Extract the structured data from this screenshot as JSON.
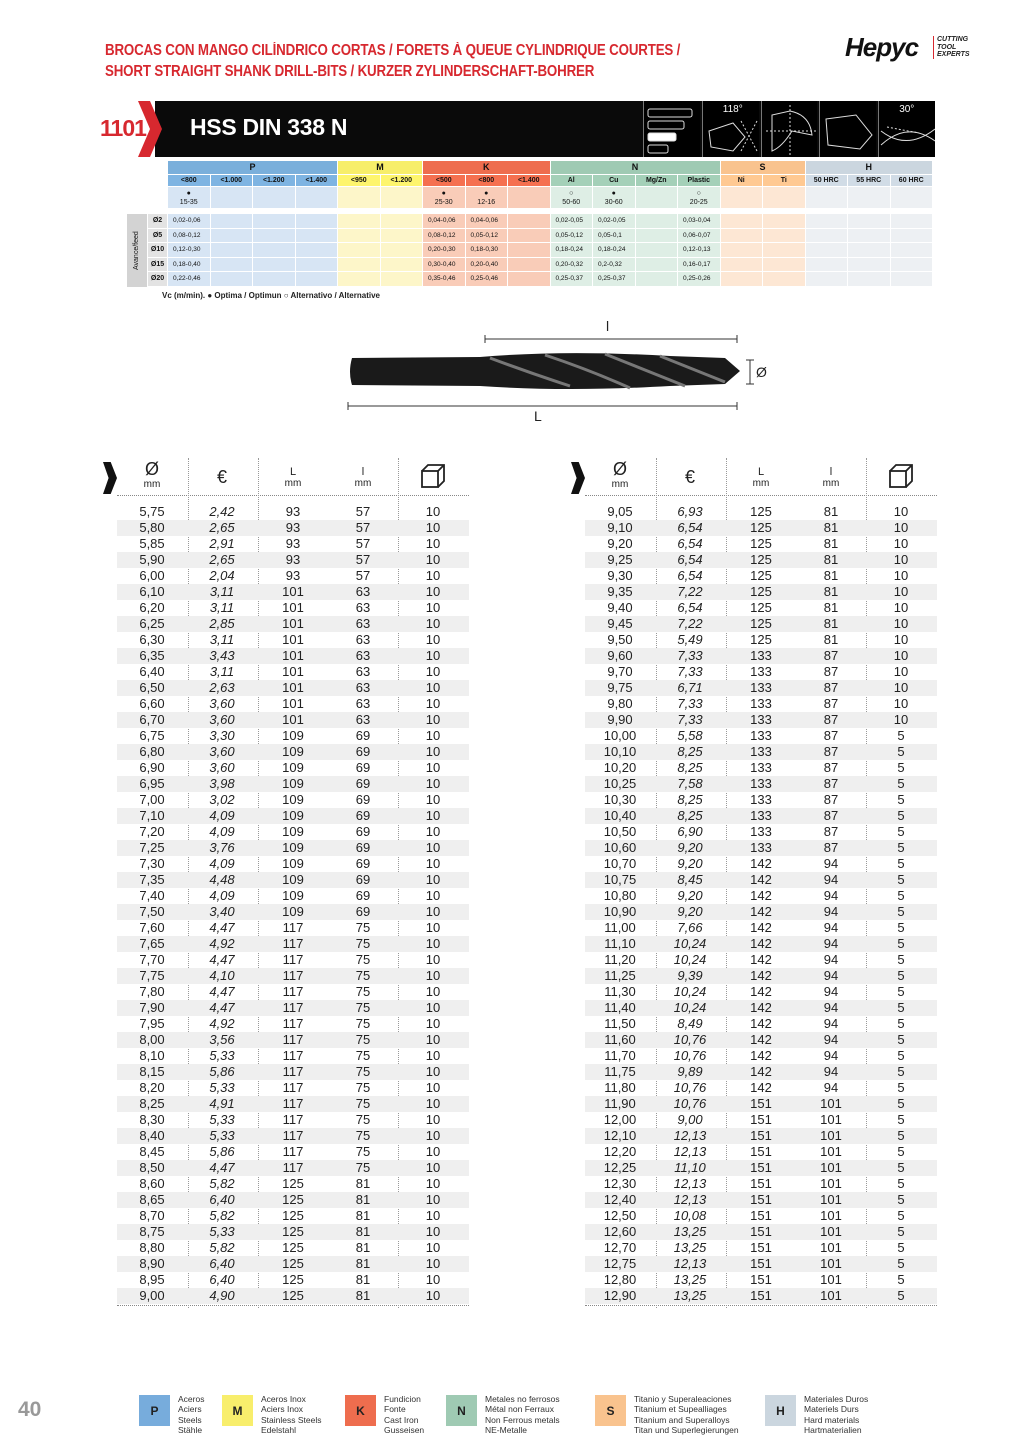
{
  "header": {
    "title_line1": "BROCAS CON MANGO CILÍNDRICO CORTAS / FORETS À QUEUE CYLINDRIQUE COURTES /",
    "title_line2": "SHORT STRAIGHT SHANK DRILL-BITS / KURZER ZYLINDERSCHAFT-BOHRER",
    "logo_text": "Hepyc",
    "logo_tagline": [
      "CUTTING",
      "TOOL",
      "EXPERTS"
    ]
  },
  "product": {
    "code": "1101",
    "title": "HSS DIN 338 N",
    "icons": [
      {
        "name": "length-bars-icon",
        "label": ""
      },
      {
        "name": "point-angle-icon",
        "label": "118°"
      },
      {
        "name": "split-point-icon",
        "label": ""
      },
      {
        "name": "ground-icon",
        "label": ""
      },
      {
        "name": "helix-angle-icon",
        "label": "30°"
      }
    ]
  },
  "materials": {
    "feed_label": "Avance/feed",
    "groups": [
      {
        "letter": "P",
        "color": "#7aafdb",
        "light": "#d7e5f4",
        "cols": [
          "<800",
          "<1.000",
          "<1.200",
          "<1.400"
        ],
        "vc": [
          {
            "mark": "optimum",
            "value": "15-35"
          },
          null,
          null,
          null
        ],
        "feed": [
          [
            "0,02-0,06",
            "",
            "",
            ""
          ],
          [
            "0,08-0,12",
            "",
            "",
            ""
          ],
          [
            "0,12-0,30",
            "",
            "",
            ""
          ],
          [
            "0,18-0,40",
            "",
            "",
            ""
          ],
          [
            "0,22-0,46",
            "",
            "",
            ""
          ]
        ]
      },
      {
        "letter": "M",
        "color": "#f7ee6a",
        "light": "#fdf6c9",
        "cols": [
          "<950",
          "<1.200"
        ],
        "vc": [
          null,
          null
        ],
        "feed": [
          [
            "",
            ""
          ],
          [
            "",
            ""
          ],
          [
            "",
            ""
          ],
          [
            "",
            ""
          ],
          [
            "",
            ""
          ]
        ]
      },
      {
        "letter": "K",
        "color": "#ee6d4e",
        "light": "#f9ccb8",
        "cols": [
          "<500",
          "<800",
          "<1.400"
        ],
        "vc": [
          {
            "mark": "optimum",
            "value": "25-30"
          },
          {
            "mark": "optimum",
            "value": "12-16"
          },
          null
        ],
        "feed": [
          [
            "0,04-0,06",
            "0,04-0,06",
            ""
          ],
          [
            "0,08-0,12",
            "0,05-0,12",
            ""
          ],
          [
            "0,20-0,30",
            "0,18-0,30",
            ""
          ],
          [
            "0,30-0,40",
            "0,20-0,40",
            ""
          ],
          [
            "0,35-0,46",
            "0,25-0,46",
            ""
          ]
        ]
      },
      {
        "letter": "N",
        "color": "#9fcab3",
        "light": "#deeee5",
        "cols": [
          "Al",
          "Cu",
          "Mg/Zn",
          "Plastic"
        ],
        "vc": [
          {
            "mark": "alternative",
            "value": "50-60"
          },
          {
            "mark": "optimum",
            "value": "30-60"
          },
          null,
          {
            "mark": "alternative",
            "value": "20-25"
          }
        ],
        "feed": [
          [
            "0,02-0,05",
            "0,02-0,05",
            "",
            "0,03-0,04"
          ],
          [
            "0,05-0,12",
            "0,05-0,1",
            "",
            "0,06-0,07"
          ],
          [
            "0,18-0,24",
            "0,18-0,24",
            "",
            "0,12-0,13"
          ],
          [
            "0,20-0,32",
            "0,2-0,32",
            "",
            "0,16-0,17"
          ],
          [
            "0,25-0,37",
            "0,25-0,37",
            "",
            "0,25-0,26"
          ]
        ]
      },
      {
        "letter": "S",
        "color": "#f9c38e",
        "light": "#fde7d4",
        "cols": [
          "Ni",
          "Ti"
        ],
        "vc": [
          null,
          null
        ],
        "feed": [
          [
            "",
            ""
          ],
          [
            "",
            ""
          ],
          [
            "",
            ""
          ],
          [
            "",
            ""
          ],
          [
            "",
            ""
          ]
        ]
      },
      {
        "letter": "H",
        "color": "#cbd6df",
        "light": "#edf0f3",
        "cols": [
          "50 HRC",
          "55 HRC",
          "60 HRC"
        ],
        "vc": [
          null,
          null,
          null
        ],
        "feed": [
          [
            "",
            "",
            ""
          ],
          [
            "",
            "",
            ""
          ],
          [
            "",
            "",
            ""
          ],
          [
            "",
            "",
            ""
          ],
          [
            "",
            "",
            ""
          ]
        ]
      }
    ],
    "diameters": [
      "Ø2",
      "Ø5",
      "Ø10",
      "Ø15",
      "Ø20"
    ],
    "legend": "Vc (m/min). ● Optima / Optimun ○ Alternativo / Alternative"
  },
  "drawing": {
    "length_total": "L",
    "length_flute": "l",
    "diameter": "Ø"
  },
  "table_headers": {
    "diameter": "Ø",
    "diameter_unit": "mm",
    "price": "€",
    "L": "L",
    "L_unit": "mm",
    "l": "l",
    "l_unit": "mm",
    "pack_icon": "box-icon"
  },
  "left_table": [
    [
      "5,75",
      "2,42",
      "93",
      "57",
      "10"
    ],
    [
      "5,80",
      "2,65",
      "93",
      "57",
      "10"
    ],
    [
      "5,85",
      "2,91",
      "93",
      "57",
      "10"
    ],
    [
      "5,90",
      "2,65",
      "93",
      "57",
      "10"
    ],
    [
      "6,00",
      "2,04",
      "93",
      "57",
      "10"
    ],
    [
      "6,10",
      "3,11",
      "101",
      "63",
      "10"
    ],
    [
      "6,20",
      "3,11",
      "101",
      "63",
      "10"
    ],
    [
      "6,25",
      "2,85",
      "101",
      "63",
      "10"
    ],
    [
      "6,30",
      "3,11",
      "101",
      "63",
      "10"
    ],
    [
      "6,35",
      "3,43",
      "101",
      "63",
      "10"
    ],
    [
      "6,40",
      "3,11",
      "101",
      "63",
      "10"
    ],
    [
      "6,50",
      "2,63",
      "101",
      "63",
      "10"
    ],
    [
      "6,60",
      "3,60",
      "101",
      "63",
      "10"
    ],
    [
      "6,70",
      "3,60",
      "101",
      "63",
      "10"
    ],
    [
      "6,75",
      "3,30",
      "109",
      "69",
      "10"
    ],
    [
      "6,80",
      "3,60",
      "109",
      "69",
      "10"
    ],
    [
      "6,90",
      "3,60",
      "109",
      "69",
      "10"
    ],
    [
      "6,95",
      "3,98",
      "109",
      "69",
      "10"
    ],
    [
      "7,00",
      "3,02",
      "109",
      "69",
      "10"
    ],
    [
      "7,10",
      "4,09",
      "109",
      "69",
      "10"
    ],
    [
      "7,20",
      "4,09",
      "109",
      "69",
      "10"
    ],
    [
      "7,25",
      "3,76",
      "109",
      "69",
      "10"
    ],
    [
      "7,30",
      "4,09",
      "109",
      "69",
      "10"
    ],
    [
      "7,35",
      "4,48",
      "109",
      "69",
      "10"
    ],
    [
      "7,40",
      "4,09",
      "109",
      "69",
      "10"
    ],
    [
      "7,50",
      "3,40",
      "109",
      "69",
      "10"
    ],
    [
      "7,60",
      "4,47",
      "117",
      "75",
      "10"
    ],
    [
      "7,65",
      "4,92",
      "117",
      "75",
      "10"
    ],
    [
      "7,70",
      "4,47",
      "117",
      "75",
      "10"
    ],
    [
      "7,75",
      "4,10",
      "117",
      "75",
      "10"
    ],
    [
      "7,80",
      "4,47",
      "117",
      "75",
      "10"
    ],
    [
      "7,90",
      "4,47",
      "117",
      "75",
      "10"
    ],
    [
      "7,95",
      "4,92",
      "117",
      "75",
      "10"
    ],
    [
      "8,00",
      "3,56",
      "117",
      "75",
      "10"
    ],
    [
      "8,10",
      "5,33",
      "117",
      "75",
      "10"
    ],
    [
      "8,15",
      "5,86",
      "117",
      "75",
      "10"
    ],
    [
      "8,20",
      "5,33",
      "117",
      "75",
      "10"
    ],
    [
      "8,25",
      "4,91",
      "117",
      "75",
      "10"
    ],
    [
      "8,30",
      "5,33",
      "117",
      "75",
      "10"
    ],
    [
      "8,40",
      "5,33",
      "117",
      "75",
      "10"
    ],
    [
      "8,45",
      "5,86",
      "117",
      "75",
      "10"
    ],
    [
      "8,50",
      "4,47",
      "117",
      "75",
      "10"
    ],
    [
      "8,60",
      "5,82",
      "125",
      "81",
      "10"
    ],
    [
      "8,65",
      "6,40",
      "125",
      "81",
      "10"
    ],
    [
      "8,70",
      "5,82",
      "125",
      "81",
      "10"
    ],
    [
      "8,75",
      "5,33",
      "125",
      "81",
      "10"
    ],
    [
      "8,80",
      "5,82",
      "125",
      "81",
      "10"
    ],
    [
      "8,90",
      "6,40",
      "125",
      "81",
      "10"
    ],
    [
      "8,95",
      "6,40",
      "125",
      "81",
      "10"
    ],
    [
      "9,00",
      "4,90",
      "125",
      "81",
      "10"
    ]
  ],
  "right_table": [
    [
      "9,05",
      "6,93",
      "125",
      "81",
      "10"
    ],
    [
      "9,10",
      "6,54",
      "125",
      "81",
      "10"
    ],
    [
      "9,20",
      "6,54",
      "125",
      "81",
      "10"
    ],
    [
      "9,25",
      "6,54",
      "125",
      "81",
      "10"
    ],
    [
      "9,30",
      "6,54",
      "125",
      "81",
      "10"
    ],
    [
      "9,35",
      "7,22",
      "125",
      "81",
      "10"
    ],
    [
      "9,40",
      "6,54",
      "125",
      "81",
      "10"
    ],
    [
      "9,45",
      "7,22",
      "125",
      "81",
      "10"
    ],
    [
      "9,50",
      "5,49",
      "125",
      "81",
      "10"
    ],
    [
      "9,60",
      "7,33",
      "133",
      "87",
      "10"
    ],
    [
      "9,70",
      "7,33",
      "133",
      "87",
      "10"
    ],
    [
      "9,75",
      "6,71",
      "133",
      "87",
      "10"
    ],
    [
      "9,80",
      "7,33",
      "133",
      "87",
      "10"
    ],
    [
      "9,90",
      "7,33",
      "133",
      "87",
      "10"
    ],
    [
      "10,00",
      "5,58",
      "133",
      "87",
      "5"
    ],
    [
      "10,10",
      "8,25",
      "133",
      "87",
      "5"
    ],
    [
      "10,20",
      "8,25",
      "133",
      "87",
      "5"
    ],
    [
      "10,25",
      "7,58",
      "133",
      "87",
      "5"
    ],
    [
      "10,30",
      "8,25",
      "133",
      "87",
      "5"
    ],
    [
      "10,40",
      "8,25",
      "133",
      "87",
      "5"
    ],
    [
      "10,50",
      "6,90",
      "133",
      "87",
      "5"
    ],
    [
      "10,60",
      "9,20",
      "133",
      "87",
      "5"
    ],
    [
      "10,70",
      "9,20",
      "142",
      "94",
      "5"
    ],
    [
      "10,75",
      "8,45",
      "142",
      "94",
      "5"
    ],
    [
      "10,80",
      "9,20",
      "142",
      "94",
      "5"
    ],
    [
      "10,90",
      "9,20",
      "142",
      "94",
      "5"
    ],
    [
      "11,00",
      "7,66",
      "142",
      "94",
      "5"
    ],
    [
      "11,10",
      "10,24",
      "142",
      "94",
      "5"
    ],
    [
      "11,20",
      "10,24",
      "142",
      "94",
      "5"
    ],
    [
      "11,25",
      "9,39",
      "142",
      "94",
      "5"
    ],
    [
      "11,30",
      "10,24",
      "142",
      "94",
      "5"
    ],
    [
      "11,40",
      "10,24",
      "142",
      "94",
      "5"
    ],
    [
      "11,50",
      "8,49",
      "142",
      "94",
      "5"
    ],
    [
      "11,60",
      "10,76",
      "142",
      "94",
      "5"
    ],
    [
      "11,70",
      "10,76",
      "142",
      "94",
      "5"
    ],
    [
      "11,75",
      "9,89",
      "142",
      "94",
      "5"
    ],
    [
      "11,80",
      "10,76",
      "142",
      "94",
      "5"
    ],
    [
      "11,90",
      "10,76",
      "151",
      "101",
      "5"
    ],
    [
      "12,00",
      "9,00",
      "151",
      "101",
      "5"
    ],
    [
      "12,10",
      "12,13",
      "151",
      "101",
      "5"
    ],
    [
      "12,20",
      "12,13",
      "151",
      "101",
      "5"
    ],
    [
      "12,25",
      "11,10",
      "151",
      "101",
      "5"
    ],
    [
      "12,30",
      "12,13",
      "151",
      "101",
      "5"
    ],
    [
      "12,40",
      "12,13",
      "151",
      "101",
      "5"
    ],
    [
      "12,50",
      "10,08",
      "151",
      "101",
      "5"
    ],
    [
      "12,60",
      "13,25",
      "151",
      "101",
      "5"
    ],
    [
      "12,70",
      "13,25",
      "151",
      "101",
      "5"
    ],
    [
      "12,75",
      "12,13",
      "151",
      "101",
      "5"
    ],
    [
      "12,80",
      "13,25",
      "151",
      "101",
      "5"
    ],
    [
      "12,90",
      "13,25",
      "151",
      "101",
      "5"
    ]
  ],
  "footer": {
    "page_number": "40",
    "legend": [
      {
        "letter": "P",
        "color": "#77acdc",
        "lines": [
          "Aceros",
          "Aciers",
          "Steels",
          "Stähle"
        ]
      },
      {
        "letter": "M",
        "color": "#f8ee6c",
        "lines": [
          "Aceros Inox",
          "Aciers Inox",
          "Stainless Steels",
          "Edelstahl"
        ]
      },
      {
        "letter": "K",
        "color": "#ee6d4e",
        "lines": [
          "Fundicion",
          "Fonte",
          "Cast Iron",
          "Gusseisen"
        ]
      },
      {
        "letter": "N",
        "color": "#9fcab3",
        "lines": [
          "Metales no ferrosos",
          "Métal non Ferraux",
          "Non Ferrous metals",
          "NE-Metalle"
        ]
      },
      {
        "letter": "S",
        "color": "#f9c38e",
        "lines": [
          "Titanio y Superaleaciones",
          "Titanium et Supealliages",
          "Titanium and Superalloys",
          "Titan und Superlegierungen"
        ]
      },
      {
        "letter": "H",
        "color": "#cbd6df",
        "lines": [
          "Materiales Duros",
          "Materiels Durs",
          "Hard materials",
          "Hartmaterialien"
        ]
      }
    ]
  }
}
